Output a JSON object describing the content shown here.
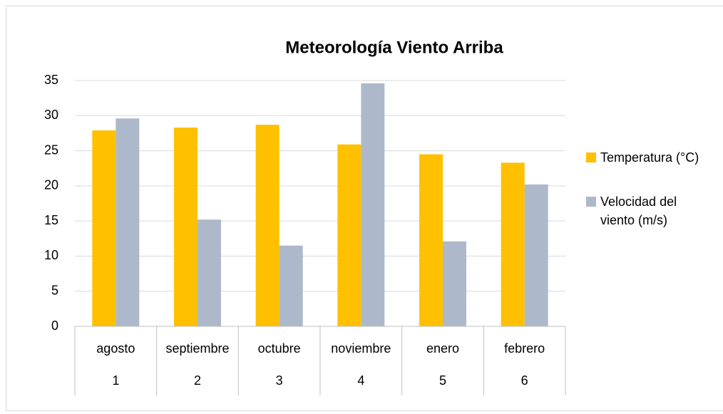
{
  "chart_data": {
    "type": "bar",
    "title": "Meteorología Viento Arriba",
    "categories": [
      "agosto",
      "septiembre",
      "octubre",
      "noviembre",
      "enero",
      "febrero"
    ],
    "category_numbers": [
      1,
      2,
      3,
      4,
      5,
      6
    ],
    "series": [
      {
        "name": "Temperatura (°C)",
        "color": "#ffc000",
        "values": [
          27.9,
          28.3,
          28.7,
          25.9,
          24.5,
          23.3
        ]
      },
      {
        "name": "Velocidad del viento (m/s)",
        "color": "#adb9ca",
        "values": [
          29.6,
          15.2,
          11.5,
          34.6,
          12.1,
          20.2
        ]
      }
    ],
    "ylim": [
      0,
      35
    ],
    "yticks": [
      0,
      5,
      10,
      15,
      20,
      25,
      30,
      35
    ],
    "grid": true,
    "legend": "right"
  }
}
